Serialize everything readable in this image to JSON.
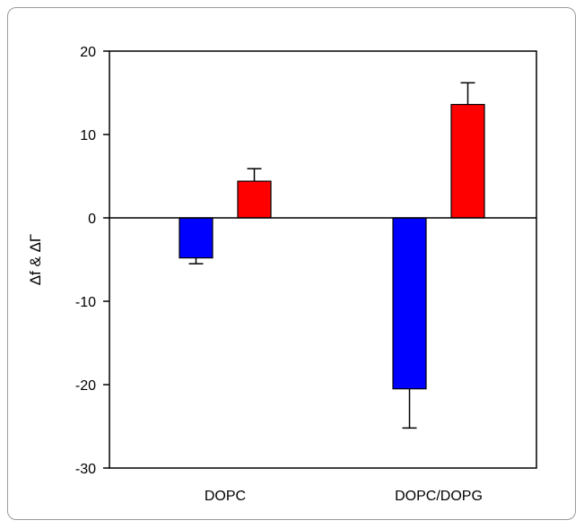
{
  "chart_data": {
    "type": "bar",
    "title": "",
    "xlabel": "",
    "ylabel": "Δf & ΔΓ",
    "categories": [
      "DOPC",
      "DOPC/DOPG"
    ],
    "series": [
      {
        "color": "#0000ff",
        "values": [
          -4.8,
          -20.5
        ],
        "errors": [
          0.7,
          4.7
        ]
      },
      {
        "color": "#ff0000",
        "values": [
          4.4,
          13.6
        ],
        "errors": [
          1.5,
          2.6
        ]
      }
    ],
    "ylim": [
      -30,
      20
    ],
    "yticks": [
      -30,
      -20,
      -10,
      0,
      10,
      20
    ],
    "ytick_labels": [
      "-30",
      "-20",
      "-10",
      "0",
      "10",
      "20"
    ],
    "grid": false,
    "legend": "none",
    "zero_line": true
  }
}
